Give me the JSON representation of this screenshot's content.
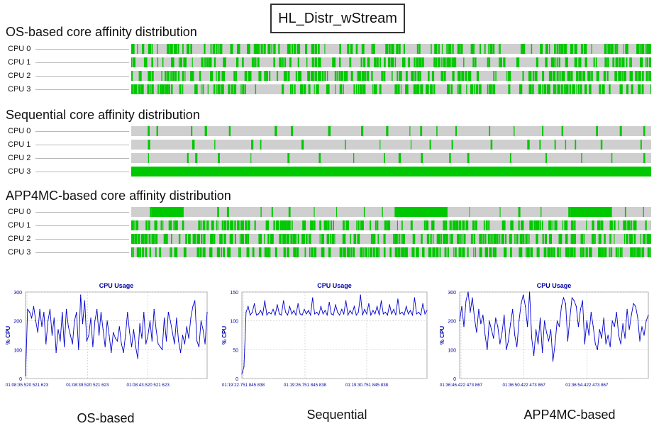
{
  "title": "HL_Distr_wStream",
  "sections": [
    {
      "title": "OS-based core affinity distribution",
      "rows": [
        "CPU 0",
        "CPU 1",
        "CPU 2",
        "CPU 3"
      ],
      "busy_fraction": [
        0.55,
        0.5,
        0.55,
        0.6
      ],
      "pattern": [
        "dense",
        "dense",
        "dense",
        "dense"
      ]
    },
    {
      "title": "Sequential core affinity distribution",
      "rows": [
        "CPU 0",
        "CPU 1",
        "CPU 2",
        "CPU 3"
      ],
      "busy_fraction": [
        0.12,
        0.1,
        0.14,
        1.0
      ],
      "pattern": [
        "sparse",
        "sparse",
        "sparse",
        "full"
      ]
    },
    {
      "title": "APP4MC-based core affinity distribution",
      "rows": [
        "CPU 0",
        "CPU 1",
        "CPU 2",
        "CPU 3"
      ],
      "busy_fraction": [
        0.35,
        0.6,
        0.65,
        0.6
      ],
      "pattern": [
        "blocks",
        "dense",
        "dense",
        "dense"
      ]
    }
  ],
  "colors": {
    "busy": "#00c800",
    "idle": "#cfcfcf",
    "line": "#0000cc",
    "grid": "#c8c8c8",
    "axis_text": "#0000a0"
  },
  "chart_data": [
    {
      "type": "line",
      "title": "CPU Usage",
      "ylabel": "% CPU",
      "ylim": [
        0,
        300
      ],
      "yticks": [
        0,
        100,
        200,
        300
      ],
      "xticks": [
        "01:08:35.520 521 623",
        "01:08:39.520 521 623",
        "01:08:43.520 521 623"
      ],
      "grid": true,
      "x": [
        0,
        1,
        2,
        3,
        4,
        5,
        6,
        7,
        8,
        9,
        10,
        11,
        12,
        13,
        14,
        15,
        16,
        17,
        18,
        19,
        20,
        21,
        22,
        23,
        24,
        25,
        26,
        27,
        28,
        29,
        30,
        31,
        32,
        33,
        34,
        35,
        36,
        37,
        38,
        39,
        40,
        41,
        42,
        43,
        44,
        45,
        46,
        47,
        48,
        49,
        50,
        51,
        52,
        53,
        54,
        55,
        56,
        57,
        58,
        59,
        60,
        61,
        62,
        63,
        64,
        65,
        66,
        67,
        68,
        69,
        70,
        71,
        72,
        73,
        74,
        75,
        76,
        77,
        78,
        79,
        80,
        81,
        82,
        83,
        84,
        85,
        86,
        87,
        88,
        89
      ],
      "values": [
        10,
        240,
        230,
        210,
        250,
        200,
        160,
        240,
        180,
        230,
        120,
        200,
        240,
        150,
        210,
        90,
        170,
        130,
        230,
        110,
        240,
        180,
        150,
        120,
        200,
        230,
        100,
        290,
        190,
        270,
        130,
        150,
        210,
        110,
        200,
        240,
        150,
        230,
        170,
        110,
        200,
        150,
        90,
        160,
        140,
        130,
        180,
        120,
        90,
        150,
        230,
        160,
        110,
        170,
        110,
        70,
        190,
        140,
        230,
        120,
        150,
        200,
        130,
        240,
        170,
        120,
        110,
        100,
        210,
        130,
        230,
        200,
        160,
        120,
        210,
        130,
        90,
        150,
        120,
        180,
        140,
        210,
        250,
        270,
        130,
        110,
        200,
        170,
        120,
        230
      ],
      "caption": "OS-based"
    },
    {
      "type": "line",
      "title": "CPU Usage",
      "ylabel": "% CPU",
      "ylim": [
        0,
        150
      ],
      "yticks": [
        0,
        50,
        100,
        150
      ],
      "xticks": [
        "01:19:22.751 845 838",
        "01:19:26.751 845 838",
        "01:19:30.751 845 838"
      ],
      "grid": true,
      "x": [
        0,
        1,
        2,
        3,
        4,
        5,
        6,
        7,
        8,
        9,
        10,
        11,
        12,
        13,
        14,
        15,
        16,
        17,
        18,
        19,
        20,
        21,
        22,
        23,
        24,
        25,
        26,
        27,
        28,
        29,
        30,
        31,
        32,
        33,
        34,
        35,
        36,
        37,
        38,
        39,
        40,
        41,
        42,
        43,
        44,
        45,
        46,
        47,
        48,
        49,
        50,
        51,
        52,
        53,
        54,
        55,
        56,
        57,
        58,
        59,
        60,
        61,
        62,
        63,
        64,
        65,
        66,
        67,
        68,
        69,
        70,
        71,
        72,
        73,
        74,
        75,
        76,
        77,
        78,
        79,
        80,
        81,
        82,
        83,
        84,
        85,
        86,
        87,
        88,
        89
      ],
      "values": [
        8,
        20,
        115,
        125,
        110,
        115,
        130,
        110,
        112,
        118,
        110,
        135,
        110,
        115,
        112,
        120,
        110,
        128,
        112,
        110,
        135,
        115,
        110,
        125,
        112,
        118,
        110,
        130,
        112,
        110,
        120,
        112,
        118,
        110,
        140,
        112,
        115,
        110,
        125,
        112,
        118,
        110,
        132,
        112,
        110,
        128,
        115,
        110,
        120,
        112,
        135,
        110,
        118,
        112,
        125,
        110,
        115,
        145,
        110,
        120,
        112,
        130,
        110,
        118,
        112,
        125,
        110,
        135,
        112,
        115,
        110,
        128,
        112,
        120,
        110,
        138,
        112,
        115,
        110,
        125,
        112,
        118,
        110,
        140,
        112,
        115,
        110,
        130,
        112,
        118
      ],
      "caption": "Sequential"
    },
    {
      "type": "line",
      "title": "CPU Usage",
      "ylabel": "% CPU",
      "ylim": [
        0,
        300
      ],
      "yticks": [
        0,
        100,
        200,
        300
      ],
      "xticks": [
        "01:36:46.422 473 867",
        "01:36:50.422 473 867",
        "01:36:54.422 473 867"
      ],
      "grid": true,
      "x": [
        0,
        1,
        2,
        3,
        4,
        5,
        6,
        7,
        8,
        9,
        10,
        11,
        12,
        13,
        14,
        15,
        16,
        17,
        18,
        19,
        20,
        21,
        22,
        23,
        24,
        25,
        26,
        27,
        28,
        29,
        30,
        31,
        32,
        33,
        34,
        35,
        36,
        37,
        38,
        39,
        40,
        41,
        42,
        43,
        44,
        45,
        46,
        47,
        48,
        49,
        50,
        51,
        52,
        53,
        54,
        55,
        56,
        57,
        58,
        59,
        60,
        61,
        62,
        63,
        64,
        65,
        66,
        67,
        68,
        69,
        70,
        71,
        72,
        73,
        74,
        75,
        76,
        77,
        78,
        79,
        80,
        81,
        82,
        83,
        84,
        85,
        86,
        87,
        88,
        89
      ],
      "values": [
        200,
        250,
        180,
        270,
        300,
        230,
        280,
        210,
        160,
        240,
        190,
        220,
        150,
        100,
        200,
        170,
        140,
        210,
        180,
        120,
        160,
        220,
        100,
        130,
        190,
        240,
        150,
        110,
        200,
        260,
        290,
        250,
        180,
        300,
        140,
        80,
        170,
        120,
        210,
        90,
        200,
        160,
        130,
        170,
        60,
        120,
        200,
        180,
        250,
        280,
        260,
        130,
        210,
        280,
        270,
        250,
        180,
        240,
        270,
        120,
        200,
        150,
        230,
        180,
        120,
        100,
        170,
        140,
        210,
        120,
        150,
        110,
        200,
        180,
        230,
        150,
        120,
        190,
        140,
        240,
        170,
        220,
        260,
        250,
        210,
        130,
        180,
        150,
        200,
        220
      ],
      "caption": "APP4MC-based"
    }
  ]
}
